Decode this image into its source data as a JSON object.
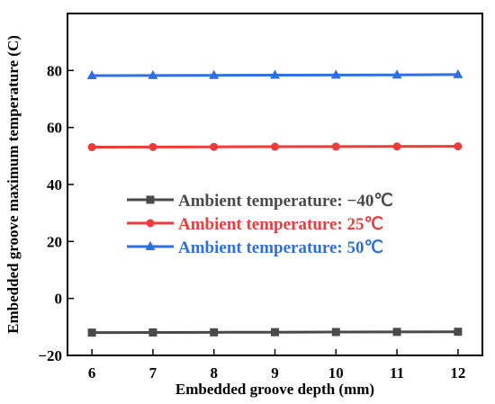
{
  "chart_data": {
    "type": "line",
    "xlabel": "Embedded groove depth (mm)",
    "ylabel": "Embedded groove maximum temperature (C)",
    "xlim": [
      5.6,
      12.4
    ],
    "ylim": [
      -20,
      100
    ],
    "xticks": [
      6,
      7,
      8,
      9,
      10,
      11,
      12
    ],
    "yticks": [
      -20,
      0,
      20,
      40,
      60,
      80
    ],
    "x": [
      6,
      7,
      8,
      9,
      10,
      11,
      12
    ],
    "series": [
      {
        "name": "Ambient temperature: −40℃",
        "values": [
          -12.0,
          -11.95,
          -11.9,
          -11.85,
          -11.8,
          -11.75,
          -11.7
        ],
        "color": "#4a4a4a",
        "marker": "square"
      },
      {
        "name": "Ambient temperature: 25℃",
        "values": [
          53.1,
          53.15,
          53.2,
          53.25,
          53.3,
          53.35,
          53.4
        ],
        "color": "#ee3b3b",
        "marker": "circle"
      },
      {
        "name": "Ambient temperature: 50℃",
        "values": [
          78.2,
          78.25,
          78.3,
          78.35,
          78.4,
          78.45,
          78.55
        ],
        "color": "#2f6fe0",
        "marker": "triangle"
      }
    ],
    "legend_position": "center-left",
    "grid": false
  }
}
